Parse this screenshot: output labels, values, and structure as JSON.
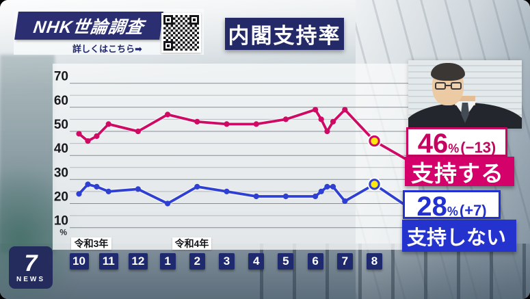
{
  "header": {
    "brand": {
      "logo_text": "NHK世論調査",
      "link_text": "詳しくはこちら➡",
      "qr_icon": "qr-code"
    },
    "title": "内閣支持率"
  },
  "chart_data": {
    "type": "line",
    "title": "内閣支持率",
    "unit": "%",
    "grid": true,
    "y_axis": {
      "min": 10,
      "max": 70,
      "tick_step": 10,
      "minor_step": 5,
      "ticks": [
        70,
        60,
        50,
        40,
        30,
        20,
        10
      ],
      "unit_label": "%"
    },
    "x_axis": {
      "months": [
        "10",
        "11",
        "12",
        "1",
        "2",
        "3",
        "4",
        "5",
        "6",
        "7",
        "8"
      ],
      "era_labels": [
        {
          "text": "令和3年",
          "month_index": 0
        },
        {
          "text": "令和4年",
          "month_index": 3
        }
      ]
    },
    "series": [
      {
        "name": "支持する",
        "color": "#cf0a64",
        "points": [
          [
            0,
            49
          ],
          [
            0.3,
            46
          ],
          [
            0.6,
            48
          ],
          [
            1,
            53
          ],
          [
            2,
            50
          ],
          [
            3,
            57
          ],
          [
            4,
            54
          ],
          [
            5,
            53
          ],
          [
            6,
            53
          ],
          [
            7,
            55
          ],
          [
            8,
            59
          ],
          [
            8.2,
            55
          ],
          [
            8.4,
            50
          ],
          [
            8.6,
            54
          ],
          [
            9,
            59
          ],
          [
            10,
            46
          ]
        ],
        "highlight_last": true
      },
      {
        "name": "支持しない",
        "color": "#2e3fd2",
        "points": [
          [
            0,
            24
          ],
          [
            0.3,
            28
          ],
          [
            0.6,
            27
          ],
          [
            1,
            25
          ],
          [
            2,
            26
          ],
          [
            3,
            20
          ],
          [
            4,
            27
          ],
          [
            5,
            25
          ],
          [
            6,
            23
          ],
          [
            7,
            23
          ],
          [
            8,
            23
          ],
          [
            8.2,
            25
          ],
          [
            8.4,
            27
          ],
          [
            8.6,
            27
          ],
          [
            9,
            21
          ],
          [
            10,
            28
          ]
        ],
        "highlight_last": true
      }
    ],
    "highlight_color": "#ffe90a",
    "legend_position": "right-callouts"
  },
  "annotations": {
    "approve": {
      "value": "46",
      "unit": "%",
      "change": "(−13)",
      "label": "支持する"
    },
    "disapprove": {
      "value": "28",
      "unit": "%",
      "change": "(+7)",
      "label": "支持しない"
    }
  },
  "footer": {
    "logo_number": "7",
    "logo_text": "NEWS"
  },
  "colors": {
    "navy": "#242a68",
    "approve_pink": "#d4016b",
    "disapprove_blue": "#2433cd",
    "highlight_yellow": "#ffe90a"
  }
}
